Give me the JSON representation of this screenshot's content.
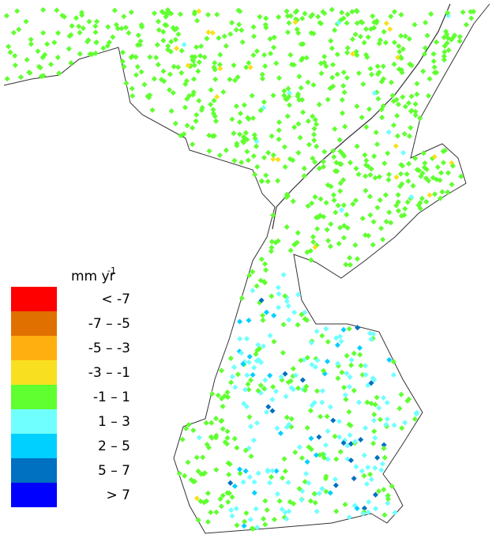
{
  "legend": {
    "unit": "mm yr",
    "unit_exponent": "-1",
    "items": [
      {
        "label": "< -7",
        "color": "#ff0000"
      },
      {
        "label": "-7 – -5",
        "color": "#e07000"
      },
      {
        "label": "-5 – -3",
        "color": "#ffb010"
      },
      {
        "label": "-3 – -1",
        "color": "#f8e020"
      },
      {
        "label": "-1 – 1",
        "color": "#60ff30"
      },
      {
        "label": "1 – 3",
        "color": "#70ffff"
      },
      {
        "label": "2 – 5",
        "color": "#00d0ff"
      },
      {
        "label": "5 – 7",
        "color": "#0070c0"
      },
      {
        "label": "> 7",
        "color": "#0000ff"
      }
    ]
  }
}
